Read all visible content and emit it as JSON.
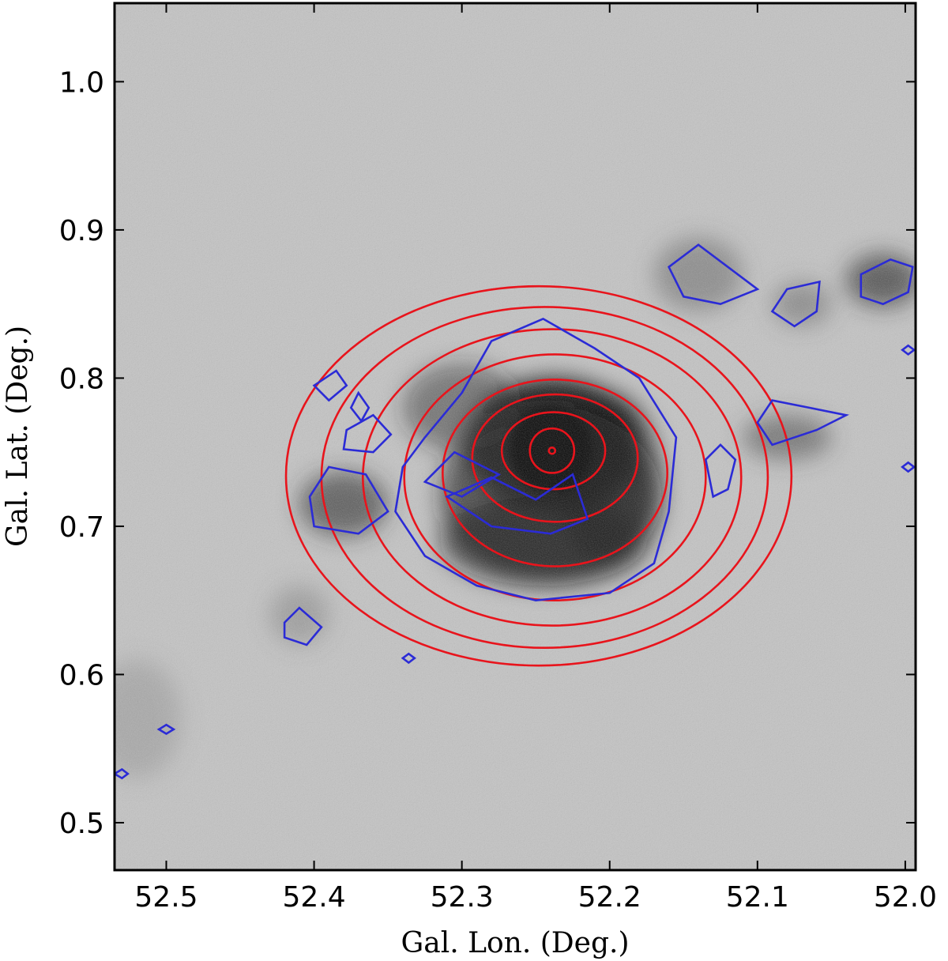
{
  "chart_data": {
    "type": "heatmap",
    "title": "",
    "xlabel": "Gal.  Lon.  (Deg.)",
    "ylabel": "Gal.  Lat.  (Deg.)",
    "xlim": [
      52.535,
      51.993
    ],
    "ylim": [
      0.468,
      1.053
    ],
    "x_ticks": [
      {
        "value": 52.5,
        "label": "52.5"
      },
      {
        "value": 52.4,
        "label": "52.4"
      },
      {
        "value": 52.3,
        "label": "52.3"
      },
      {
        "value": 52.2,
        "label": "52.2"
      },
      {
        "value": 52.1,
        "label": "52.1"
      },
      {
        "value": 52.0,
        "label": "52.0"
      }
    ],
    "y_ticks": [
      {
        "value": 0.5,
        "label": "0.5"
      },
      {
        "value": 0.6,
        "label": "0.6"
      },
      {
        "value": 0.7,
        "label": "0.7"
      },
      {
        "value": 0.8,
        "label": "0.8"
      },
      {
        "value": 0.9,
        "label": "0.9"
      },
      {
        "value": 1.0,
        "label": "1.0"
      }
    ],
    "image": {
      "colormap": "gray_r",
      "background": "noisy grayscale map",
      "emission_peak": {
        "lon": 52.24,
        "lat": 0.75
      }
    },
    "series": [
      {
        "color": "#e8141c",
        "contours": [
          {
            "center": [
              52.239,
              0.751
            ],
            "radius": [
              0.001,
              0.002
            ]
          },
          {
            "center": [
              52.239,
              0.751
            ],
            "radius": [
              0.015,
              0.015
            ]
          },
          {
            "center": [
              52.238,
              0.751
            ],
            "radius": [
              0.035,
              0.026
            ]
          },
          {
            "center": [
              52.237,
              0.746
            ],
            "radius": [
              0.056,
              0.043
            ]
          },
          {
            "center": [
              52.237,
              0.736
            ],
            "radius": [
              0.076,
              0.063
            ]
          },
          {
            "center": [
              52.237,
              0.733
            ],
            "radius": [
              0.102,
              0.083
            ]
          },
          {
            "center": [
              52.239,
              0.733
            ],
            "radius": [
              0.128,
              0.1
            ]
          },
          {
            "center": [
              52.244,
              0.733
            ],
            "radius": [
              0.151,
              0.115
            ]
          },
          {
            "center": [
              52.248,
              0.734
            ],
            "radius": [
              0.171,
              0.128
            ]
          }
        ]
      },
      {
        "color": "#2b2bd6",
        "contours": [
          {
            "points": [
              [
                52.325,
                0.76
              ],
              [
                52.3,
                0.79
              ],
              [
                52.28,
                0.825
              ],
              [
                52.245,
                0.84
              ],
              [
                52.21,
                0.82
              ],
              [
                52.18,
                0.8
              ],
              [
                52.155,
                0.76
              ],
              [
                52.16,
                0.71
              ],
              [
                52.17,
                0.675
              ],
              [
                52.2,
                0.655
              ],
              [
                52.25,
                0.65
              ],
              [
                52.29,
                0.66
              ],
              [
                52.325,
                0.68
              ],
              [
                52.345,
                0.71
              ],
              [
                52.34,
                0.74
              ]
            ]
          },
          {
            "points": [
              [
                52.31,
                0.72
              ],
              [
                52.28,
                0.7
              ],
              [
                52.24,
                0.695
              ],
              [
                52.215,
                0.705
              ],
              [
                52.225,
                0.735
              ],
              [
                52.25,
                0.718
              ],
              [
                52.28,
                0.733
              ]
            ]
          },
          {
            "points": [
              [
                52.325,
                0.73
              ],
              [
                52.3,
                0.72
              ],
              [
                52.275,
                0.735
              ],
              [
                52.305,
                0.75
              ]
            ]
          },
          {
            "points": [
              [
                52.4,
                0.7
              ],
              [
                52.37,
                0.695
              ],
              [
                52.35,
                0.71
              ],
              [
                52.365,
                0.735
              ],
              [
                52.39,
                0.74
              ],
              [
                52.403,
                0.72
              ]
            ]
          },
          {
            "points": [
              [
                52.378,
                0.765
              ],
              [
                52.36,
                0.775
              ],
              [
                52.348,
                0.762
              ],
              [
                52.36,
                0.75
              ],
              [
                52.38,
                0.752
              ]
            ]
          },
          {
            "points": [
              [
                52.4,
                0.795
              ],
              [
                52.385,
                0.805
              ],
              [
                52.378,
                0.795
              ],
              [
                52.39,
                0.785
              ]
            ]
          },
          {
            "points": [
              [
                52.375,
                0.78
              ],
              [
                52.37,
                0.79
              ],
              [
                52.363,
                0.78
              ],
              [
                52.368,
                0.771
              ]
            ]
          },
          {
            "points": [
              [
                52.16,
                0.875
              ],
              [
                52.14,
                0.89
              ],
              [
                52.12,
                0.875
              ],
              [
                52.1,
                0.86
              ],
              [
                52.125,
                0.85
              ],
              [
                52.15,
                0.855
              ]
            ]
          },
          {
            "points": [
              [
                52.1,
                0.77
              ],
              [
                52.09,
                0.755
              ],
              [
                52.06,
                0.765
              ],
              [
                52.04,
                0.775
              ],
              [
                52.065,
                0.78
              ],
              [
                52.09,
                0.785
              ]
            ]
          },
          {
            "points": [
              [
                52.09,
                0.845
              ],
              [
                52.08,
                0.86
              ],
              [
                52.058,
                0.865
              ],
              [
                52.06,
                0.845
              ],
              [
                52.075,
                0.835
              ]
            ]
          },
          {
            "points": [
              [
                52.03,
                0.87
              ],
              [
                52.01,
                0.88
              ],
              [
                51.995,
                0.875
              ],
              [
                51.998,
                0.858
              ],
              [
                52.015,
                0.85
              ],
              [
                52.03,
                0.855
              ]
            ]
          },
          {
            "points": [
              [
                52.135,
                0.745
              ],
              [
                52.125,
                0.755
              ],
              [
                52.115,
                0.745
              ],
              [
                52.12,
                0.725
              ],
              [
                52.13,
                0.72
              ]
            ]
          },
          {
            "points": [
              [
                52.42,
                0.635
              ],
              [
                52.41,
                0.645
              ],
              [
                52.395,
                0.632
              ],
              [
                52.405,
                0.62
              ],
              [
                52.42,
                0.625
              ]
            ]
          },
          {
            "points": [
              [
                52.505,
                0.563
              ],
              [
                52.5,
                0.566
              ],
              [
                52.495,
                0.563
              ],
              [
                52.5,
                0.56
              ]
            ]
          },
          {
            "points": [
              [
                52.34,
                0.611
              ],
              [
                52.336,
                0.614
              ],
              [
                52.332,
                0.611
              ],
              [
                52.336,
                0.608
              ]
            ]
          },
          {
            "points": [
              [
                52.535,
                0.533
              ],
              [
                52.53,
                0.536
              ],
              [
                52.526,
                0.533
              ],
              [
                52.53,
                0.53
              ]
            ]
          },
          {
            "points": [
              [
                52.002,
                0.819
              ],
              [
                51.998,
                0.822
              ],
              [
                51.994,
                0.819
              ],
              [
                51.998,
                0.816
              ]
            ]
          },
          {
            "points": [
              [
                52.002,
                0.74
              ],
              [
                51.998,
                0.743
              ],
              [
                51.994,
                0.74
              ],
              [
                51.998,
                0.737
              ]
            ]
          }
        ]
      }
    ],
    "grid": false,
    "legend": "none"
  }
}
